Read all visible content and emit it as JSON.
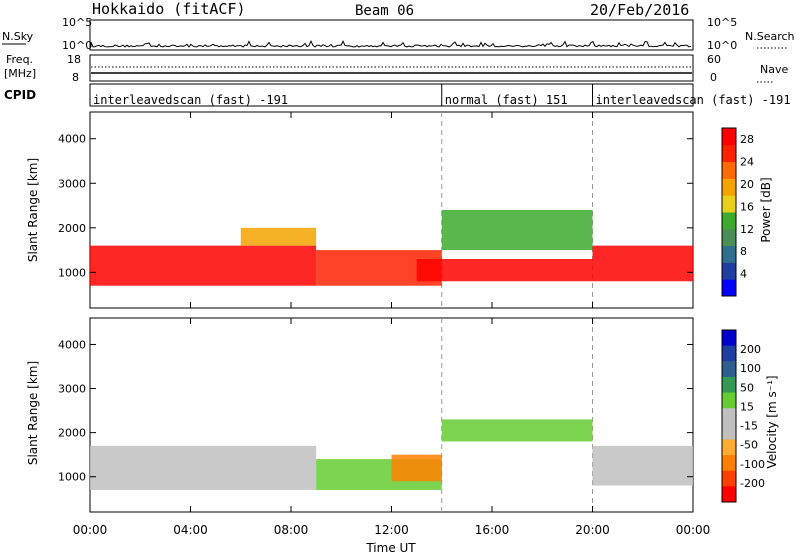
{
  "header": {
    "station": "Hokkaido (fitACF)",
    "beam": "Beam 06",
    "date": "20/Feb/2016"
  },
  "panels": {
    "nsky": {
      "label": "N.Sky",
      "tick_top": "10^5",
      "tick_bottom": "10^0",
      "right_label": "N.Search"
    },
    "freq": {
      "label_line1": "Freq.",
      "label_line2": "[MHz]",
      "tick_top": "18",
      "tick_bottom": "8",
      "right_tick_top": "60",
      "right_tick_bottom": "0",
      "right_label": "Nave"
    },
    "cpid": {
      "label": "CPID",
      "segments": [
        {
          "name": "interleavedscan (fast) -191",
          "start_h": 0,
          "end_h": 14
        },
        {
          "name": "normal (fast) 151",
          "start_h": 14,
          "end_h": 20
        },
        {
          "name": "interleavedscan (fast) -191",
          "start_h": 20,
          "end_h": 24
        }
      ]
    }
  },
  "colors": {
    "power": [
      "#0000ff",
      "#1f3fa0",
      "#2e6e8e",
      "#4a8f5a",
      "#3daa2e",
      "#e8d01a",
      "#f5a300",
      "#ff6a00",
      "#ff2200",
      "#ff0000"
    ],
    "velocity": [
      "#ff0000",
      "#ff4000",
      "#ff8000",
      "#ffaa33",
      "#c0c0c0",
      "#c0c0c0",
      "#66cc33",
      "#339955",
      "#2e5f8e",
      "#1f3fa0",
      "#0000cc"
    ]
  },
  "chart_data": [
    {
      "type": "heatmap",
      "title": "",
      "xlabel": "",
      "ylabel": "Slant Range [km]",
      "xlim": [
        0,
        24
      ],
      "ylim": [
        200,
        4600
      ],
      "yticks": [
        1000,
        2000,
        3000,
        4000
      ],
      "colorbar": {
        "label": "Power [dB]",
        "range": [
          0,
          30
        ],
        "ticks": [
          4,
          8,
          12,
          16,
          20,
          24,
          28
        ]
      },
      "regions": [
        {
          "x": [
            0,
            9
          ],
          "y": [
            700,
            1600
          ],
          "value": 28
        },
        {
          "x": [
            6,
            9
          ],
          "y": [
            1600,
            2000
          ],
          "value": 20
        },
        {
          "x": [
            9,
            14
          ],
          "y": [
            700,
            1500
          ],
          "value": 24
        },
        {
          "x": [
            13,
            20
          ],
          "y": [
            800,
            1300
          ],
          "value": 28
        },
        {
          "x": [
            14,
            20
          ],
          "y": [
            1500,
            2400
          ],
          "value": 14
        },
        {
          "x": [
            20,
            24
          ],
          "y": [
            800,
            1600
          ],
          "value": 28
        }
      ]
    },
    {
      "type": "heatmap",
      "title": "",
      "xlabel": "Time UT",
      "ylabel": "Slant Range [km]",
      "xlim": [
        0,
        24
      ],
      "ylim": [
        200,
        4600
      ],
      "yticks": [
        1000,
        2000,
        3000,
        4000
      ],
      "xticks": [
        "00:00",
        "04:00",
        "08:00",
        "12:00",
        "16:00",
        "20:00",
        "00:00"
      ],
      "colorbar": {
        "label": "Velocity [m s⁻¹]",
        "ticks": [
          200,
          100,
          50,
          15,
          -15,
          -50,
          -100,
          -200
        ]
      },
      "regions": [
        {
          "x": [
            0,
            9
          ],
          "y": [
            700,
            1700
          ],
          "value": 0
        },
        {
          "x": [
            9,
            14
          ],
          "y": [
            700,
            1400
          ],
          "value": 30
        },
        {
          "x": [
            12,
            14
          ],
          "y": [
            900,
            1500
          ],
          "value": -60
        },
        {
          "x": [
            14,
            20
          ],
          "y": [
            1800,
            2300
          ],
          "value": 50
        },
        {
          "x": [
            20,
            24
          ],
          "y": [
            800,
            1700
          ],
          "value": 0
        }
      ]
    }
  ]
}
